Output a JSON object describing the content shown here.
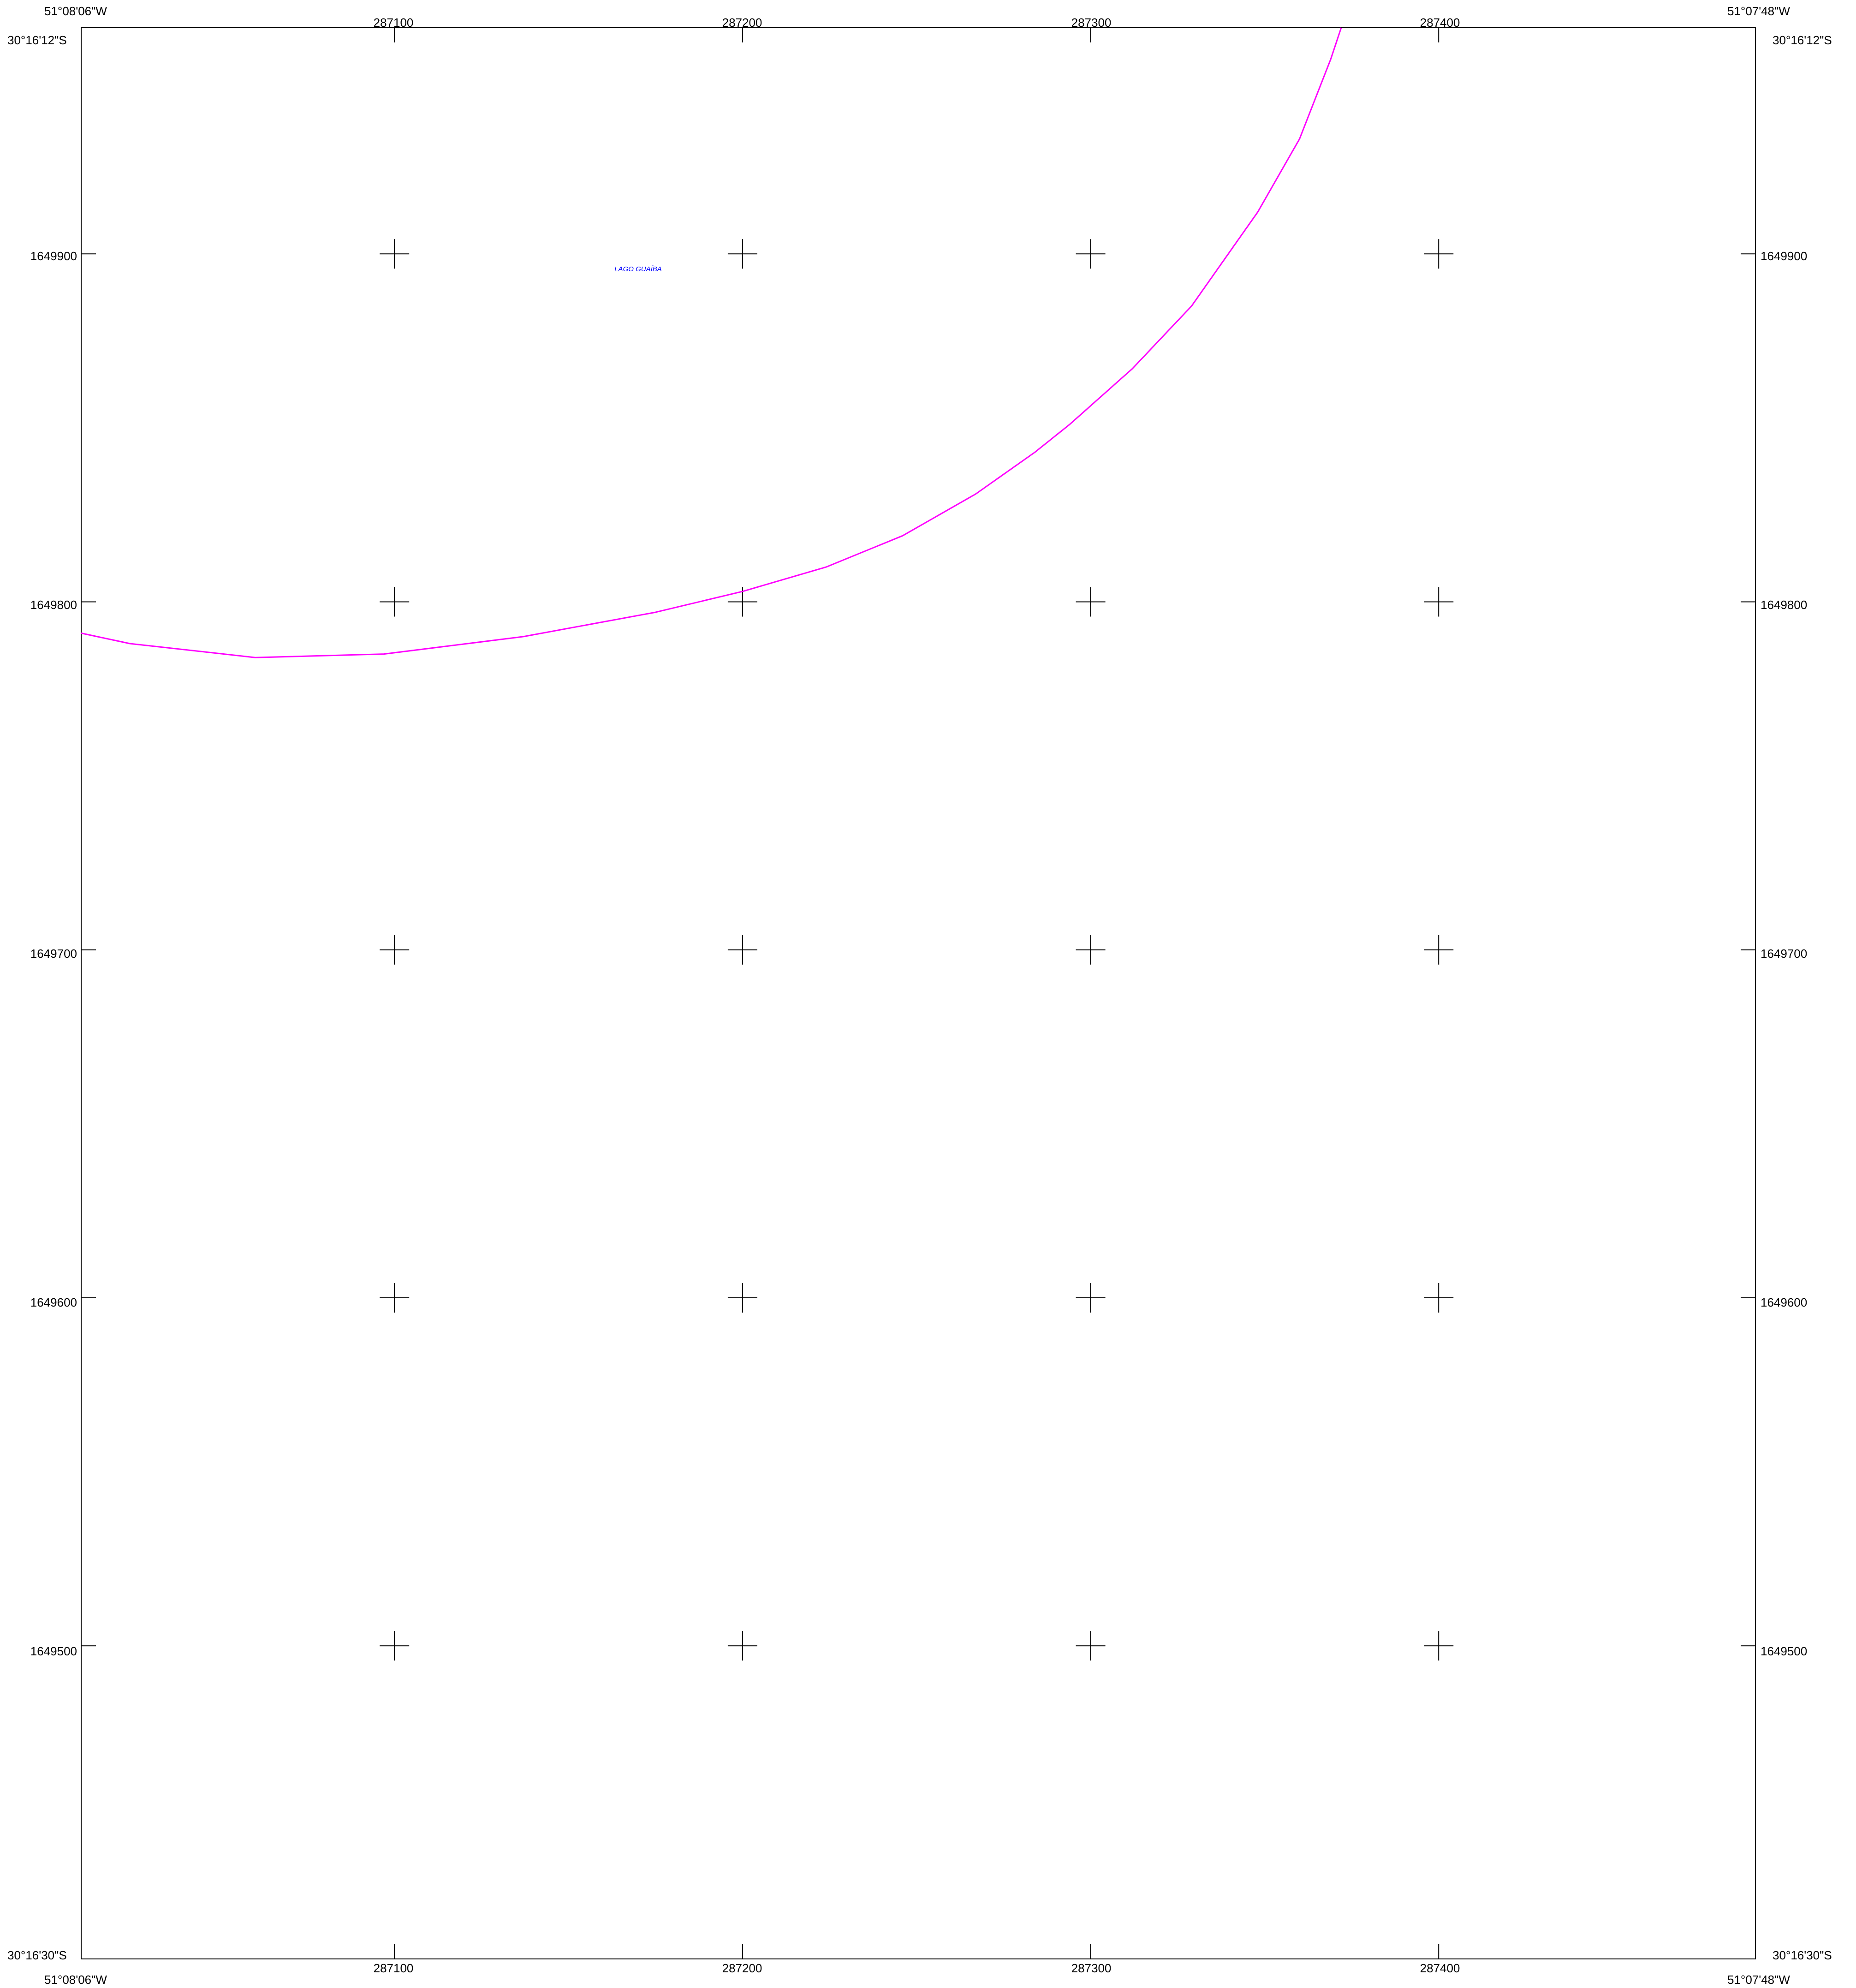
{
  "corners": {
    "top_left_lon": "51°08'06\"W",
    "top_right_lon": "51°07'48\"W",
    "bottom_left_lon": "51°08'06\"W",
    "bottom_right_lon": "51°07'48\"W",
    "top_lat": "30°16'12\"S",
    "bottom_lat": "30°16'30\"S"
  },
  "grid": {
    "eastings": [
      287100,
      287200,
      287300,
      287400
    ],
    "northings": [
      1649900,
      1649800,
      1649700,
      1649600,
      1649500
    ],
    "easting_labels": [
      "287100",
      "287200",
      "287300",
      "287400"
    ],
    "northing_labels": [
      "1649900",
      "1649800",
      "1649700",
      "1649600",
      "1649500"
    ]
  },
  "extent": {
    "min_easting": 287010,
    "max_easting": 287491,
    "min_northing": 1649410,
    "max_northing": 1649965
  },
  "shoreline": {
    "color": "#ff00ff",
    "points": [
      [
        287010,
        1649791
      ],
      [
        287024,
        1649788
      ],
      [
        287060,
        1649784
      ],
      [
        287097,
        1649785
      ],
      [
        287137,
        1649790
      ],
      [
        287175,
        1649797
      ],
      [
        287200,
        1649803
      ],
      [
        287224,
        1649810
      ],
      [
        287246,
        1649819
      ],
      [
        287267,
        1649831
      ],
      [
        287284,
        1649843
      ],
      [
        287294,
        1649851
      ],
      [
        287312,
        1649867
      ],
      [
        287329,
        1649885
      ],
      [
        287348,
        1649912
      ],
      [
        287360,
        1649933
      ],
      [
        287369,
        1649956
      ],
      [
        287372,
        1649965
      ]
    ]
  },
  "water_body": {
    "name": "LAGO GUAÍBA",
    "easting": 287170,
    "northing": 1649895,
    "color": "#0000ff"
  },
  "frame_color": "#000000"
}
